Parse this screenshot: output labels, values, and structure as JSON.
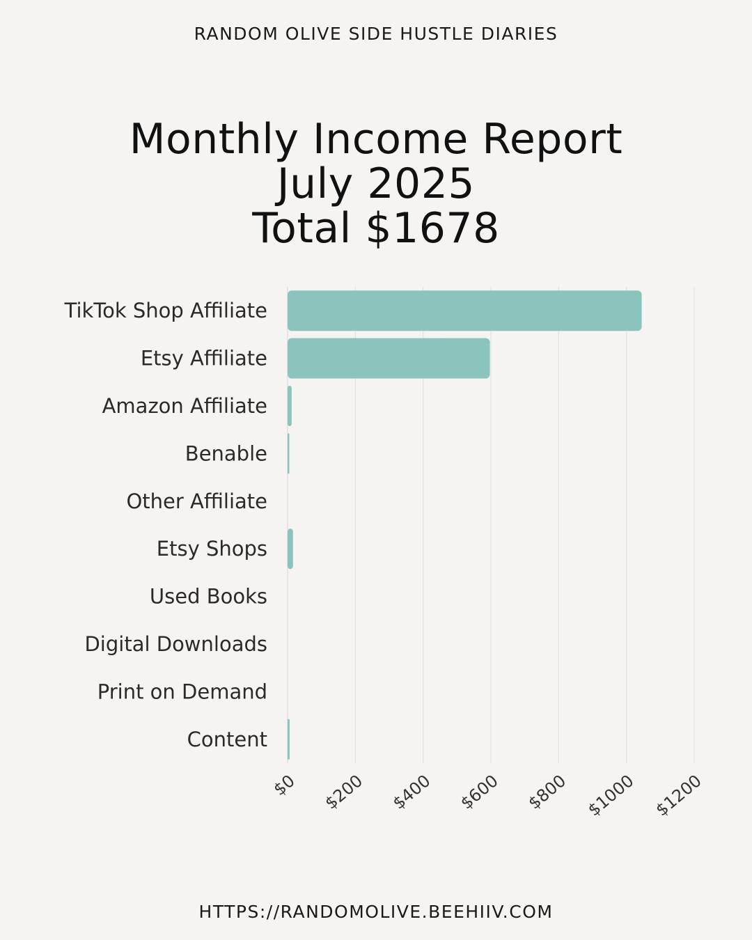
{
  "header": "RANDOM OLIVE SIDE HUSTLE DIARIES",
  "title": {
    "line1": "Monthly Income Report",
    "line2": "July 2025",
    "line3": "Total $1678"
  },
  "footer": "HTTPS://RANDOMOLIVE.BEEHIIV.COM",
  "colors": {
    "bar": "#8bc4bc",
    "background": "#f5f4f2",
    "grid": "#e0dfdd"
  },
  "chart_data": {
    "type": "bar",
    "orientation": "horizontal",
    "categories": [
      "TikTok Shop Affiliate",
      "Etsy Affiliate",
      "Amazon Affiliate",
      "Benable",
      "Other Affiliate",
      "Etsy Shops",
      "Used Books",
      "Digital Downloads",
      "Print on Demand",
      "Content"
    ],
    "values": [
      1045,
      597,
      12,
      3,
      0,
      16,
      0,
      0,
      0,
      6
    ],
    "xlim": [
      0,
      1200
    ],
    "xticks": [
      "$0",
      "$200",
      "$400",
      "$600",
      "$800",
      "$1000",
      "$1200"
    ],
    "grid": true
  }
}
